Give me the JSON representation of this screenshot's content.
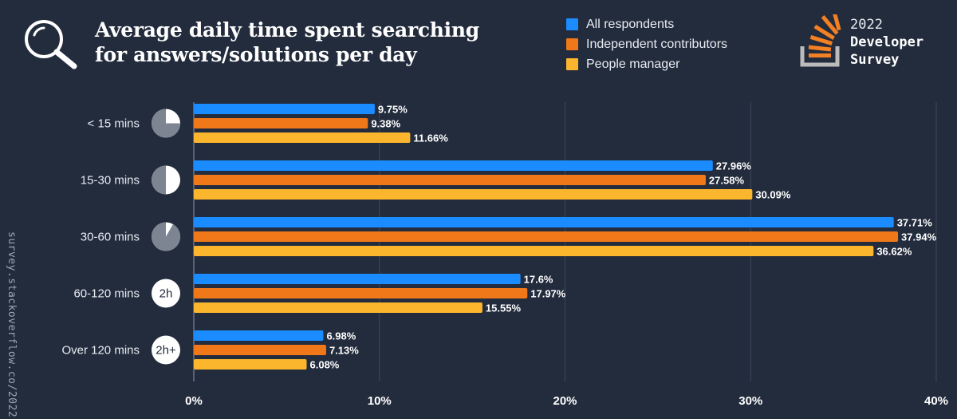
{
  "header": {
    "title_line1": "Average daily time spent searching",
    "title_line2": "for answers/solutions per day",
    "title_icon": "magnifier-icon"
  },
  "brand": {
    "year": "2022",
    "line1": "Developer",
    "line2": "Survey",
    "logo_icon": "stackoverflow-logo-icon"
  },
  "side_url": "survey.stackoverflow.co/2022",
  "colors": {
    "background": "#232c3d",
    "all_respondents": "#1a8cff",
    "independent_contributors": "#f07818",
    "people_manager": "#fbb62e",
    "grid": "#3e4759"
  },
  "chart_data": {
    "type": "bar",
    "orientation": "horizontal",
    "title": "Average daily time spent searching for answers/solutions per day",
    "categories": [
      "< 15 mins",
      "15-30 mins",
      "30-60 mins",
      "60-120 mins",
      "Over 120 mins"
    ],
    "category_badges": [
      {
        "kind": "pie",
        "fraction": 0.25,
        "text": ""
      },
      {
        "kind": "pie",
        "fraction": 0.5,
        "text": ""
      },
      {
        "kind": "pie",
        "fraction": 0.0833,
        "text": ""
      },
      {
        "kind": "text",
        "fraction": 0,
        "text": "2h"
      },
      {
        "kind": "text",
        "fraction": 0,
        "text": "2h+"
      }
    ],
    "series": [
      {
        "name": "All respondents",
        "color": "#1a8cff",
        "values": [
          9.75,
          27.96,
          37.71,
          17.6,
          6.98
        ],
        "labels": [
          "9.75%",
          "27.96%",
          "37.71%",
          "17.6%",
          "6.98%"
        ]
      },
      {
        "name": "Independent contributors",
        "color": "#f07818",
        "values": [
          9.38,
          27.58,
          37.94,
          17.97,
          7.13
        ],
        "labels": [
          "9.38%",
          "27.58%",
          "37.94%",
          "17.97%",
          "7.13%"
        ]
      },
      {
        "name": "People manager",
        "color": "#fbb62e",
        "values": [
          11.66,
          30.09,
          36.62,
          15.55,
          6.08
        ],
        "labels": [
          "11.66%",
          "30.09%",
          "36.62%",
          "15.55%",
          "6.08%"
        ]
      }
    ],
    "xlim": [
      0,
      40
    ],
    "xticks": [
      0,
      10,
      20,
      30,
      40
    ],
    "xtick_labels": [
      "0%",
      "10%",
      "20%",
      "30%",
      "40%"
    ],
    "xlabel": "",
    "ylabel": "",
    "grid": true,
    "legend_position": "top-right"
  }
}
